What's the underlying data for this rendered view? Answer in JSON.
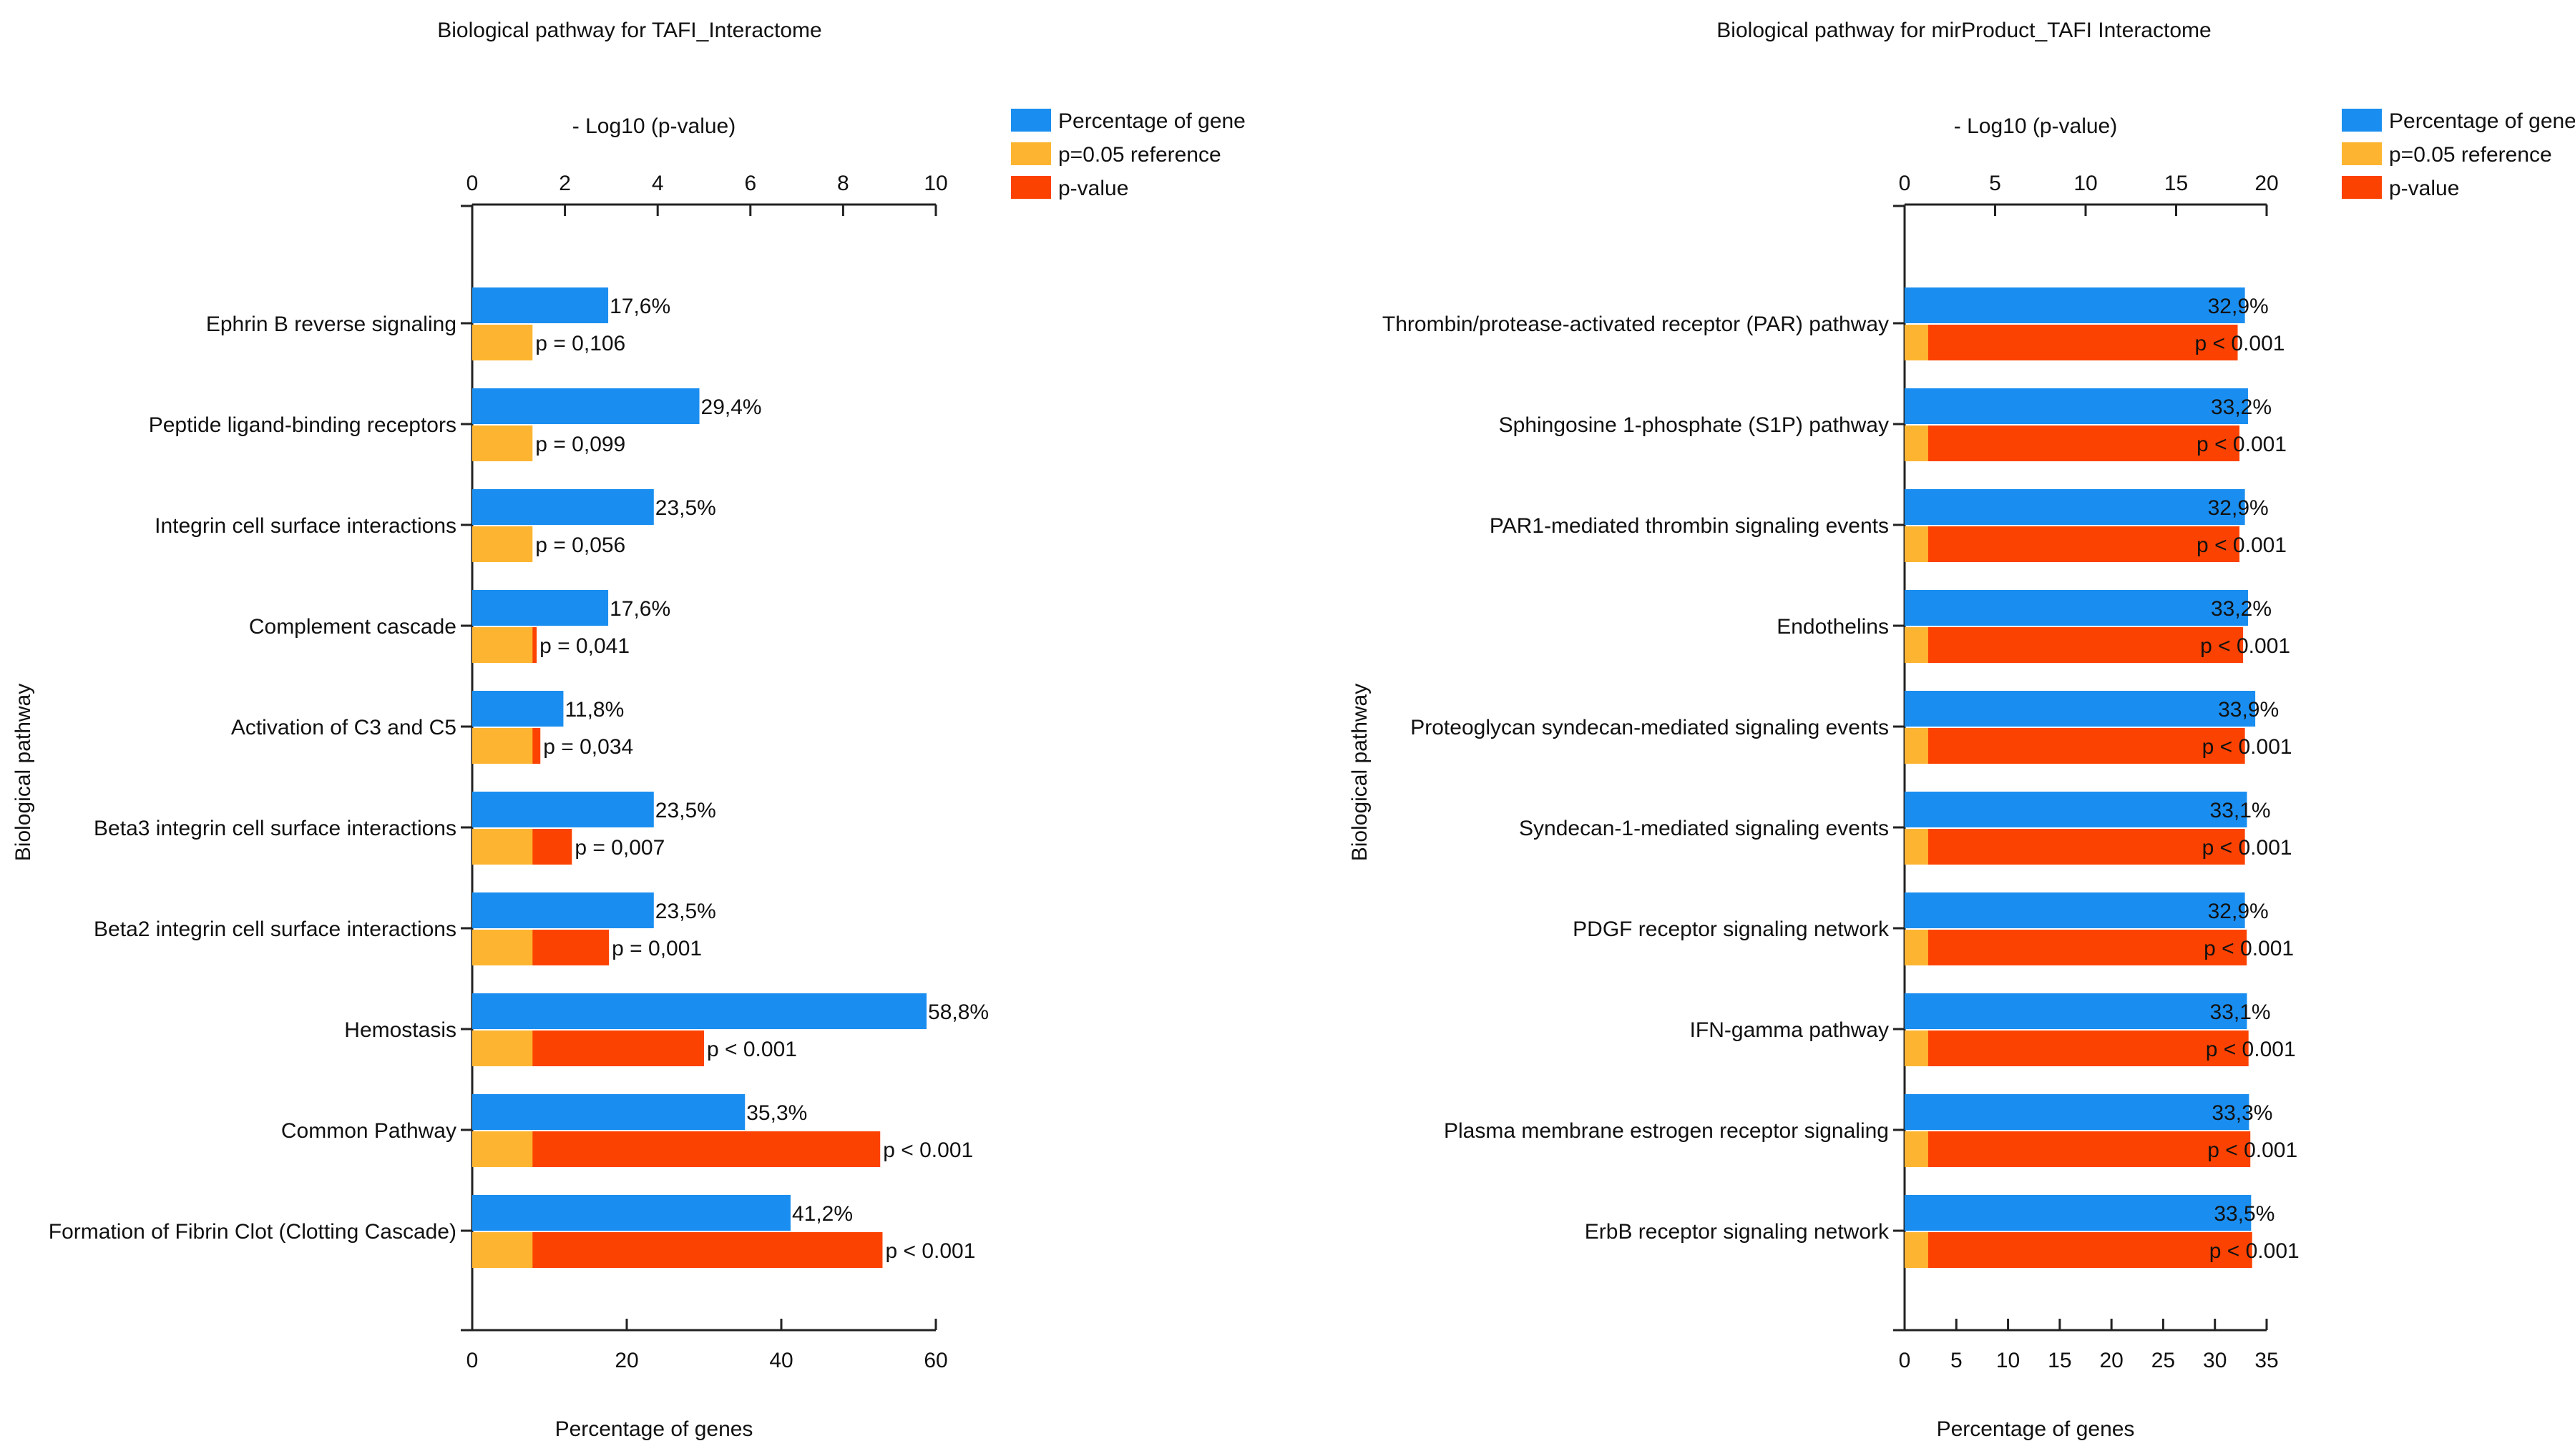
{
  "colors": {
    "percentage": "#1a8ef0",
    "reference": "#fdb531",
    "pvalue": "#fc4200",
    "axis": "#222222",
    "text": "#111111"
  },
  "chart_data": [
    {
      "type": "bar",
      "title": "Biological pathway for TAFI_Interactome",
      "ylabel": "Biological pathway",
      "xlabel_bottom": "Percentage of genes",
      "xlabel_top": "- Log10 (p-value)",
      "bottom_ticks": [
        0,
        20,
        40,
        60
      ],
      "bottom_range": [
        0,
        60
      ],
      "top_ticks": [
        0,
        2,
        4,
        6,
        8,
        10
      ],
      "top_range": [
        0,
        10
      ],
      "legend": [
        "Percentage of gene",
        "p=0.05 reference",
        "p-value"
      ],
      "legend_position": "top-right",
      "reference_value": 1.301,
      "categories": [
        "Ephrin B reverse signaling",
        "Peptide ligand-binding receptors",
        "Integrin cell surface interactions",
        "Complement cascade",
        "Activation of C3 and C5",
        "Beta3 integrin cell surface interactions",
        "Beta2 integrin cell surface interactions",
        "Hemostasis",
        "Common Pathway",
        "Formation of Fibrin Clot (Clotting Cascade)"
      ],
      "percentage": [
        17.6,
        29.4,
        23.5,
        17.6,
        11.8,
        23.5,
        23.5,
        58.8,
        35.3,
        41.2
      ],
      "percentage_labels": [
        "17,6%",
        "29,4%",
        "23,5%",
        "17,6%",
        "11,8%",
        "23,5%",
        "23,5%",
        "58,8%",
        "35,3%",
        "41,2%"
      ],
      "neg_log10_p": [
        0.97,
        1.0,
        1.25,
        1.39,
        1.47,
        2.15,
        2.95,
        5.0,
        8.8,
        8.85
      ],
      "p_labels": [
        "p = 0,106",
        "p = 0,099",
        "p = 0,056",
        "p = 0,041",
        "p = 0,034",
        "p = 0,007",
        "p = 0,001",
        "p < 0.001",
        "p < 0.001",
        "p < 0.001"
      ]
    },
    {
      "type": "bar",
      "title": "Biological pathway for mirProduct_TAFI Interactome",
      "ylabel": "Biological pathway",
      "xlabel_bottom": "Percentage of genes",
      "xlabel_top": "- Log10 (p-value)",
      "bottom_ticks": [
        0,
        5,
        10,
        15,
        20,
        25,
        30,
        35
      ],
      "bottom_range": [
        0,
        35
      ],
      "top_ticks": [
        0,
        5,
        10,
        15,
        20
      ],
      "top_range": [
        0,
        20
      ],
      "legend": [
        "Percentage of gene",
        "p=0.05 reference",
        "p-value"
      ],
      "legend_position": "top-right",
      "reference_value": 1.301,
      "categories": [
        "Thrombin/protease-activated receptor (PAR) pathway",
        "Sphingosine 1-phosphate (S1P) pathway",
        "PAR1-mediated thrombin signaling events",
        "Endothelins",
        "Proteoglycan syndecan-mediated signaling events",
        "Syndecan-1-mediated signaling events",
        "PDGF receptor signaling network",
        "IFN-gamma pathway",
        "Plasma membrane estrogen receptor signaling",
        "ErbB receptor signaling network"
      ],
      "percentage": [
        32.9,
        33.2,
        32.9,
        33.2,
        33.9,
        33.1,
        32.9,
        33.1,
        33.3,
        33.5
      ],
      "percentage_labels": [
        "32,9%",
        "33,2%",
        "32,9%",
        "33,2%",
        "33,9%",
        "33,1%",
        "32,9%",
        "33,1%",
        "33,3%",
        "33,5%"
      ],
      "neg_log10_p": [
        18.4,
        18.5,
        18.5,
        18.7,
        18.8,
        18.8,
        18.9,
        19.0,
        19.1,
        19.2
      ],
      "p_labels": [
        "p < 0.001",
        "p < 0.001",
        "p < 0.001",
        "p < 0.001",
        "p < 0.001",
        "p < 0.001",
        "p < 0.001",
        "p < 0.001",
        "p < 0.001",
        "p < 0.001"
      ]
    }
  ]
}
